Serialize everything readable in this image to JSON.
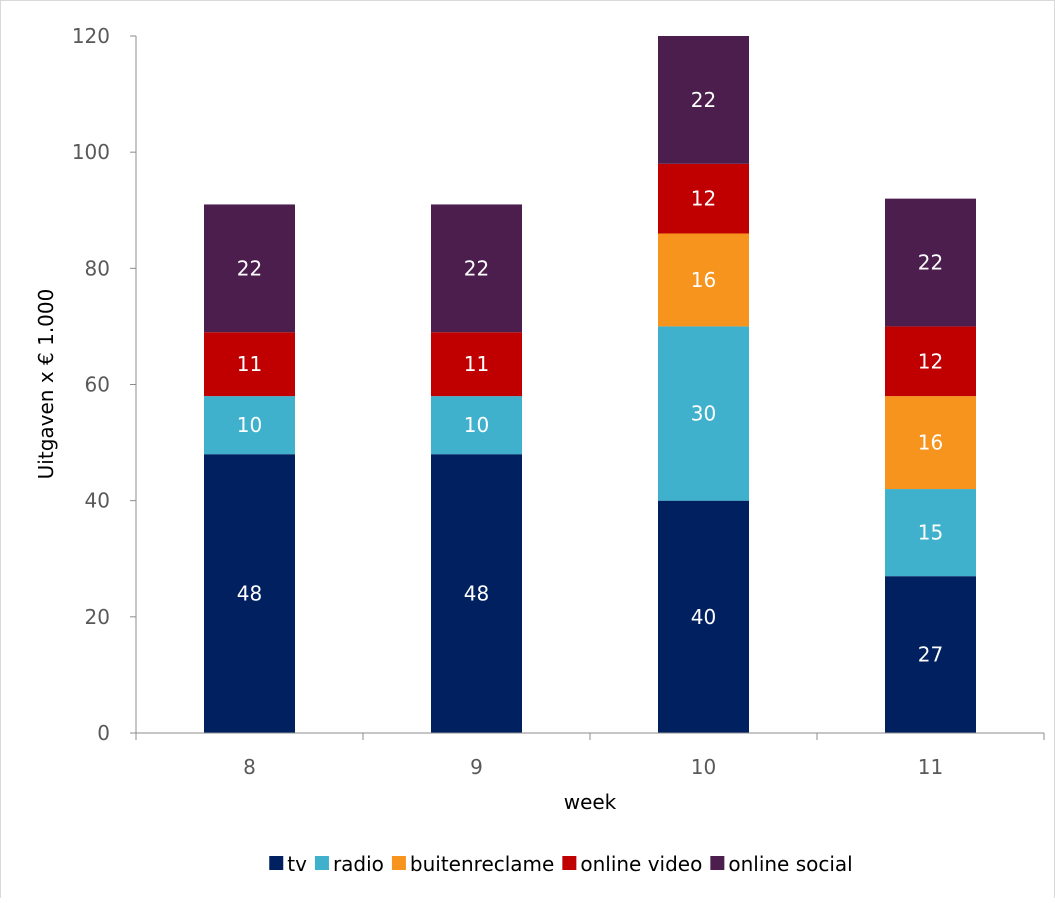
{
  "chart_data": {
    "type": "bar",
    "stacked": true,
    "title": "",
    "xlabel": "week",
    "ylabel": "Uitgaven x € 1.000",
    "categories": [
      "8",
      "9",
      "10",
      "11"
    ],
    "ylim": [
      0,
      120
    ],
    "yticks": [
      "0",
      "20",
      "40",
      "60",
      "80",
      "100",
      "120"
    ],
    "grid": false,
    "legend_position": "bottom",
    "series": [
      {
        "name": "tv",
        "color": "#002060",
        "values": [
          48,
          48,
          40,
          27
        ]
      },
      {
        "name": "radio",
        "color": "#3FB1CD",
        "values": [
          10,
          10,
          30,
          15
        ]
      },
      {
        "name": "buitenreclame",
        "color": "#F7941D",
        "values": [
          0,
          0,
          16,
          16
        ]
      },
      {
        "name": "online video",
        "color": "#C00000",
        "values": [
          11,
          11,
          12,
          12
        ]
      },
      {
        "name": "online social",
        "color": "#4B1E4E",
        "values": [
          22,
          22,
          22,
          22
        ]
      }
    ]
  }
}
